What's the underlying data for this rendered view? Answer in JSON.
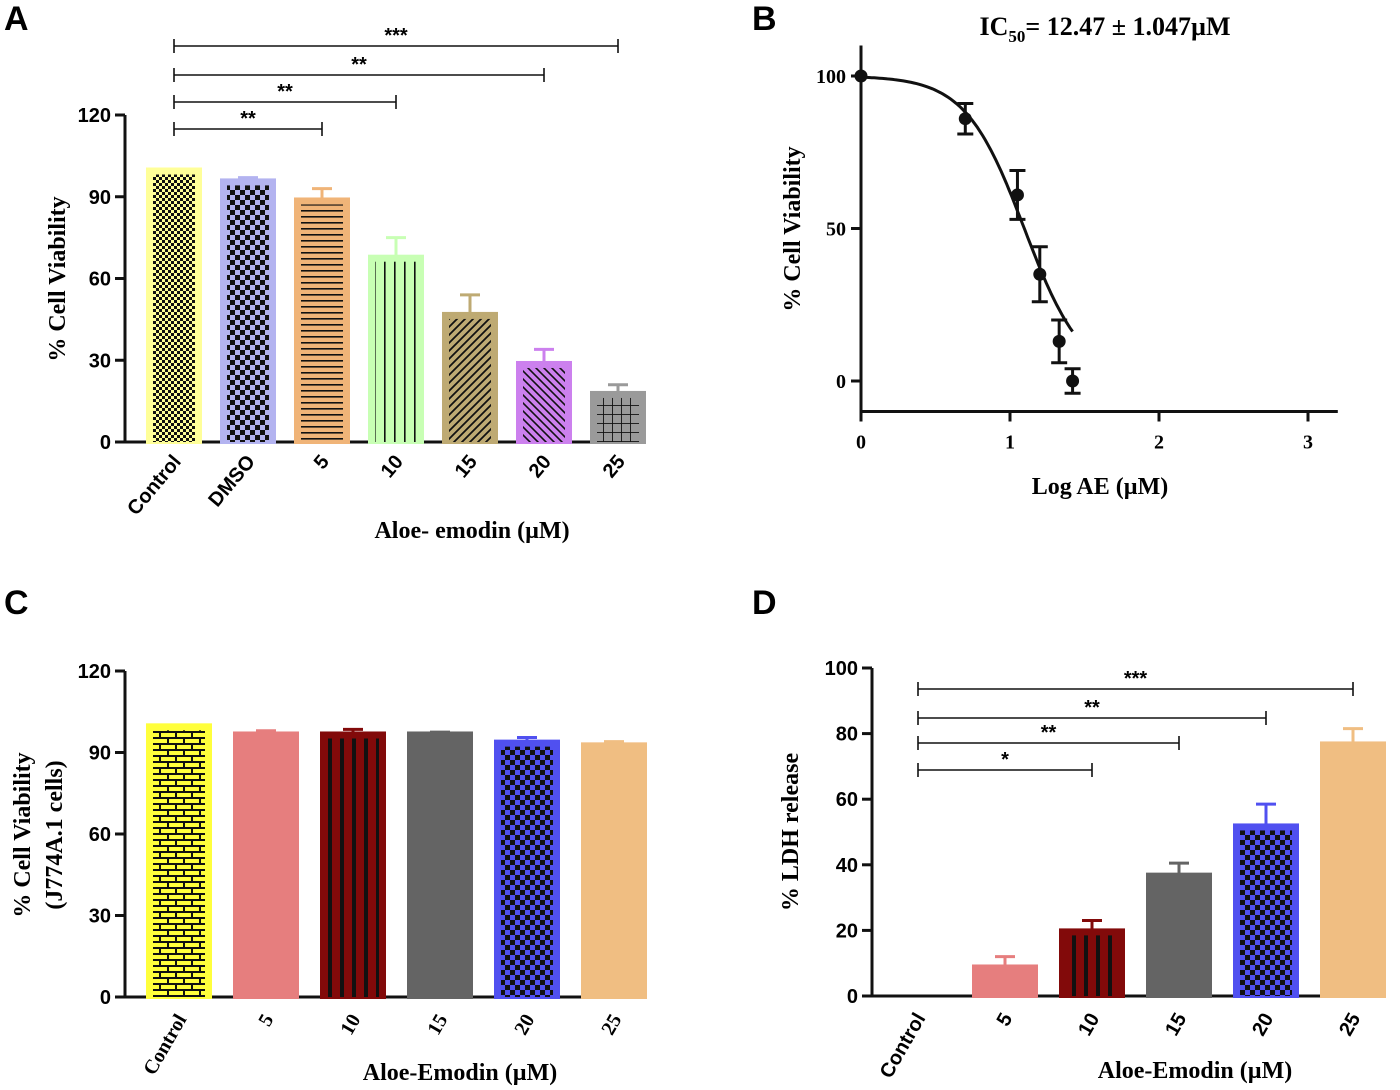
{
  "chart_data": [
    {
      "panel": "A",
      "type": "bar",
      "categories": [
        "Control",
        "DMSO",
        "5",
        "10",
        "15",
        "20",
        "25"
      ],
      "values": [
        100,
        96,
        89,
        68,
        47,
        29,
        18
      ],
      "errors": [
        0,
        1,
        4,
        7,
        7,
        5,
        3
      ],
      "xlabel": "Aloe- emodin (µM)",
      "ylabel": "% Cell Viability",
      "ylim": [
        0,
        120
      ],
      "yticks": [
        "0",
        "30",
        "60",
        "90",
        "120"
      ],
      "colors": [
        "#FFFF99",
        "#B3B3F0",
        "#F0B478",
        "#C8FFB4",
        "#BEAA73",
        "#CC80EE",
        "#9A9A9A"
      ],
      "patterns": [
        "checker-fine",
        "checker",
        "hlines",
        "vlines",
        "diag",
        "diag-rev",
        "grid"
      ],
      "significance": [
        {
          "from": "Control",
          "to": "5",
          "label": "**"
        },
        {
          "from": "Control",
          "to": "10",
          "label": "**"
        },
        {
          "from": "Control",
          "to": "20",
          "label": "**"
        },
        {
          "from": "Control",
          "to": "25",
          "label": "***"
        }
      ]
    },
    {
      "panel": "B",
      "type": "line",
      "title_main": "IC",
      "title_sub": "50",
      "title_rest": "= 12.47 ± 1.047µM",
      "x": [
        0,
        0.7,
        1.05,
        1.2,
        1.33,
        1.42
      ],
      "y": [
        100,
        86,
        61,
        35,
        13,
        0
      ],
      "errors": [
        0,
        5,
        8,
        9,
        7,
        4
      ],
      "fit": {
        "model": "sigmoid",
        "log_ic50": 1.096,
        "hill": -2.2,
        "top": 100,
        "bottom": 0,
        "x_start": 0,
        "x_end": 1.42
      },
      "xlabel": "Log AE (µM)",
      "ylabel": "% Cell Viability",
      "xlim": [
        0,
        3.2
      ],
      "ylim": [
        -10,
        110
      ],
      "xticks": [
        "0",
        "1",
        "2",
        "3"
      ],
      "yticks": [
        "0",
        "50",
        "100"
      ]
    },
    {
      "panel": "C",
      "type": "bar",
      "categories": [
        "Control",
        "5",
        "10",
        "15",
        "20",
        "25"
      ],
      "values": [
        100,
        97,
        97,
        97,
        94,
        93
      ],
      "errors": [
        0,
        1,
        1.5,
        0.5,
        1.5,
        1
      ],
      "xlabel": "Aloe-Emodin (µM)",
      "ylabel": "% Cell Viability",
      "ylabel_line2": "(J774A.1 cells)",
      "ylim": [
        0,
        120
      ],
      "yticks": [
        "0",
        "30",
        "60",
        "90",
        "120"
      ],
      "colors": [
        "#FFFF3C",
        "#E67E7E",
        "#820A0A",
        "#646464",
        "#5050F0",
        "#F0BE82"
      ],
      "patterns": [
        "brick",
        "none",
        "vbars",
        "none",
        "checker",
        "none"
      ]
    },
    {
      "panel": "D",
      "type": "bar",
      "categories": [
        "Control",
        "5",
        "10",
        "15",
        "20",
        "25"
      ],
      "values": [
        0,
        9,
        20,
        37,
        52,
        77
      ],
      "errors": [
        0,
        3,
        3,
        3.5,
        6.5,
        4.5
      ],
      "xlabel": "Aloe-Emodin (µM)",
      "ylabel": "% LDH release",
      "ylim": [
        0,
        100
      ],
      "yticks": [
        "0",
        "20",
        "40",
        "60",
        "80",
        "100"
      ],
      "colors": [
        "#FFFFFF",
        "#E67E7E",
        "#820A0A",
        "#646464",
        "#5050F0",
        "#F0BE82"
      ],
      "patterns": [
        "none",
        "none",
        "vbars",
        "none",
        "checker",
        "none"
      ],
      "significance": [
        {
          "from": "Control",
          "to": "10",
          "label": "*"
        },
        {
          "from": "Control",
          "to": "15",
          "label": "**"
        },
        {
          "from": "Control",
          "to": "20",
          "label": "**"
        },
        {
          "from": "Control",
          "to": "25",
          "label": "***"
        }
      ]
    }
  ]
}
